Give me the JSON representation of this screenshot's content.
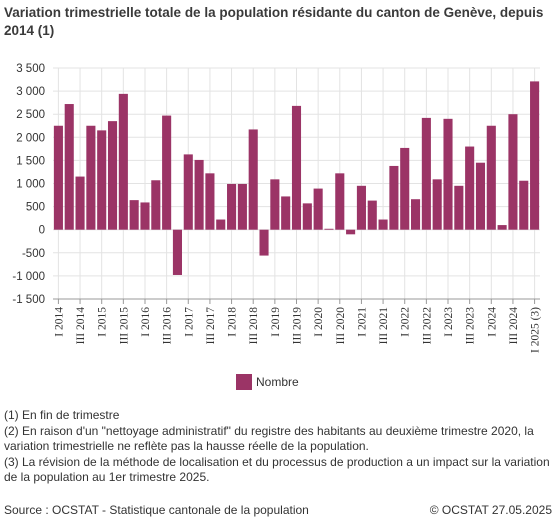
{
  "title": "Variation trimestrielle totale de la population résidante du canton de Genève, depuis 2014 (1)",
  "notes": [
    "(1) En fin de trimestre",
    "(2) En raison d'un \"nettoyage administratif\" du registre des habitants au deuxième trimestre 2020, la variation trimestrielle ne reflète pas la hausse réelle de la population.",
    "(3) La révision de la méthode de localisation et du processus de production a un impact sur la variation de la population au 1er trimestre 2025."
  ],
  "source": "Source : OCSTAT - Statistique cantonale de la population",
  "copyright": "© OCSTAT 27.05.2025",
  "colors": {
    "bar": "#9b3466",
    "grid": "#e3e3e3",
    "axis": "#999999"
  },
  "chart_data": {
    "type": "bar",
    "title": "Variation trimestrielle totale de la population résidante du canton de Genève, depuis 2014 (1)",
    "xlabel": "",
    "ylabel": "",
    "ylim": [
      -1500,
      3500
    ],
    "yticks": [
      -1500,
      -1000,
      -500,
      0,
      500,
      1000,
      1500,
      2000,
      2500,
      3000,
      3500
    ],
    "ytick_labels": [
      "-1 500",
      "-1 000",
      "-500",
      "0",
      "500",
      "1 000",
      "1 500",
      "2 000",
      "2 500",
      "3 000",
      "3 500"
    ],
    "grid": true,
    "legend": "bottom",
    "categories": [
      "I 2014",
      "II 2014",
      "III 2014",
      "IV 2014",
      "I 2015",
      "II 2015",
      "III 2015",
      "IV 2015",
      "I 2016",
      "II 2016",
      "III 2016",
      "IV 2016",
      "I 2017",
      "II 2017",
      "III 2017",
      "IV 2017",
      "I 2018",
      "II 2018",
      "III 2018",
      "IV 2018",
      "I 2019",
      "II 2019",
      "III 2019",
      "IV 2019",
      "I 2020",
      "II 2020",
      "III 2020",
      "IV 2020",
      "I 2021",
      "II 2021",
      "III 2021",
      "IV 2021",
      "I 2022",
      "II 2022",
      "III 2022",
      "IV 2022",
      "I 2023",
      "II 2023",
      "III 2023",
      "IV 2023",
      "I 2024",
      "II 2024",
      "III 2024",
      "IV 2024",
      "I 2025 (3)"
    ],
    "tick_labels": [
      "I 2014",
      "III 2014",
      "I 2015",
      "III 2015",
      "I 2016",
      "III 2016",
      "I 2017",
      "III 2017",
      "I 2018",
      "III 2018",
      "I 2019",
      "III 2019",
      "I 2020",
      "III 2020",
      "I 2021",
      "III 2021",
      "I 2022",
      "III 2022",
      "I 2023",
      "III 2023",
      "I 2024",
      "III 2024",
      "I 2025 (3)"
    ],
    "series": [
      {
        "name": "Nombre",
        "values": [
          2250,
          2720,
          1150,
          2250,
          2150,
          2350,
          2940,
          640,
          590,
          1070,
          2470,
          -980,
          1630,
          1510,
          1220,
          220,
          990,
          990,
          2170,
          -560,
          1090,
          720,
          2680,
          570,
          890,
          20,
          1220,
          -100,
          950,
          630,
          220,
          1380,
          1770,
          660,
          2420,
          1090,
          2400,
          950,
          1800,
          1450,
          2250,
          100,
          2500,
          1060,
          3210
        ]
      }
    ]
  }
}
